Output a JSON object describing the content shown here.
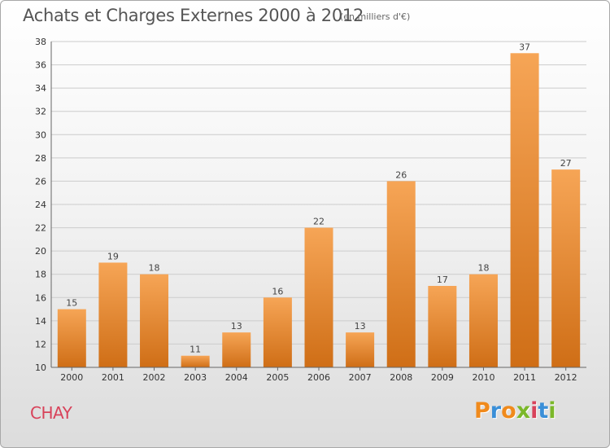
{
  "header": {
    "title": "Achats et Charges Externes 2000 à 2012",
    "subtitle": "(en milliers d'€)"
  },
  "footer": {
    "commune": "CHAY",
    "logo_letters": [
      "P",
      "r",
      "o",
      "x",
      "i",
      "t",
      "i"
    ],
    "logo_colors": [
      "#f08a1c",
      "#3a8fd8",
      "#f08a1c",
      "#7bb82a",
      "#d8425a",
      "#3a8fd8",
      "#7bb82a"
    ]
  },
  "colors": {
    "bar_top": "#f6a556",
    "bar_bottom": "#cf6e16",
    "grid": "#cccccc",
    "axis": "#666666"
  },
  "chart_data": {
    "type": "bar",
    "title": "Achats et Charges Externes 2000 à 2012",
    "subtitle": "(en milliers d'€)",
    "categories": [
      "2000",
      "2001",
      "2002",
      "2003",
      "2004",
      "2005",
      "2006",
      "2007",
      "2008",
      "2009",
      "2010",
      "2011",
      "2012"
    ],
    "values": [
      15,
      19,
      18,
      11,
      13,
      16,
      22,
      13,
      26,
      17,
      18,
      37,
      27
    ],
    "ylim": [
      10,
      38
    ],
    "yticks": [
      10,
      12,
      14,
      16,
      18,
      20,
      22,
      24,
      26,
      28,
      30,
      32,
      34,
      36,
      38
    ],
    "grid": true,
    "data_labels": true
  }
}
